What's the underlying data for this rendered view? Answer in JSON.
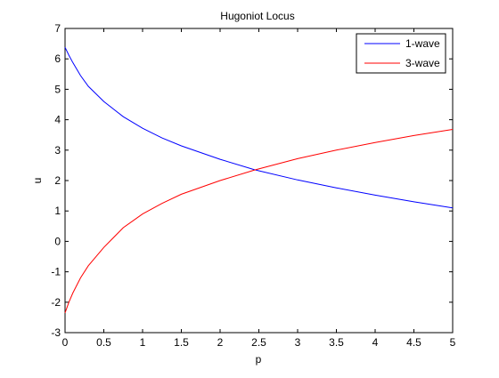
{
  "colors": {
    "background": "#ffffff",
    "axes": "#000000",
    "series_1": "#0000ff",
    "series_3": "#ff0000"
  },
  "chart_data": {
    "type": "line",
    "title": "Hugoniot Locus",
    "xlabel": "p",
    "ylabel": "u",
    "xlim": [
      0,
      5
    ],
    "ylim": [
      -3,
      7
    ],
    "grid": false,
    "legend_position": "top-right",
    "x_ticks": [
      "0",
      "0.5",
      "1",
      "1.5",
      "2",
      "2.5",
      "3",
      "3.5",
      "4",
      "4.5",
      "5"
    ],
    "y_ticks": [
      "-3",
      "-2",
      "-1",
      "0",
      "1",
      "2",
      "3",
      "4",
      "5",
      "6",
      "7"
    ],
    "series": [
      {
        "name": "1-wave",
        "color": "#0000ff",
        "x": [
          0.0,
          0.05,
          0.1,
          0.2,
          0.3,
          0.5,
          0.75,
          1.0,
          1.25,
          1.5,
          2.0,
          2.45,
          3.0,
          3.5,
          4.0,
          4.5,
          5.0
        ],
        "y": [
          6.38,
          6.12,
          5.88,
          5.45,
          5.1,
          4.6,
          4.1,
          3.72,
          3.4,
          3.14,
          2.7,
          2.35,
          2.02,
          1.76,
          1.52,
          1.3,
          1.1
        ]
      },
      {
        "name": "3-wave",
        "color": "#ff0000",
        "x": [
          0.0,
          0.05,
          0.1,
          0.2,
          0.3,
          0.5,
          0.75,
          1.0,
          1.25,
          1.5,
          2.0,
          2.45,
          3.0,
          3.5,
          4.0,
          4.5,
          5.0
        ],
        "y": [
          -2.35,
          -2.0,
          -1.7,
          -1.2,
          -0.8,
          -0.2,
          0.45,
          0.9,
          1.25,
          1.55,
          2.0,
          2.35,
          2.72,
          3.0,
          3.25,
          3.48,
          3.68
        ]
      }
    ]
  }
}
